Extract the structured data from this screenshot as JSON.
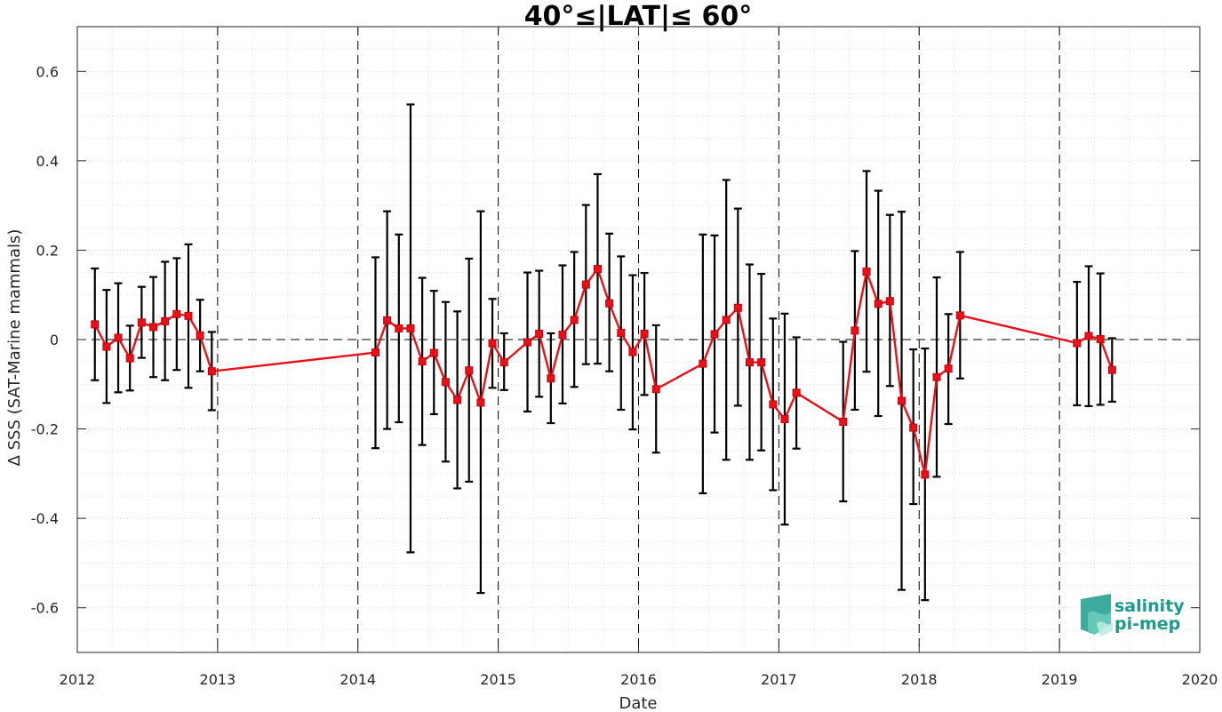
{
  "chart_data": {
    "type": "line",
    "title": "40°≤|LAT|≤ 60°",
    "xlabel": "Date",
    "ylabel": "Δ SSS (SAT-Marine mammals)",
    "xlim": [
      2012,
      2020
    ],
    "ylim": [
      -0.7,
      0.7
    ],
    "x_ticks": [
      "2012",
      "2013",
      "2014",
      "2015",
      "2016",
      "2017",
      "2018",
      "2019",
      "2020"
    ],
    "y_ticks": [
      "-0.6",
      "-0.4",
      "-0.2",
      "0",
      "0.2",
      "0.4",
      "0.6"
    ],
    "grid": true,
    "reference_line_y": 0,
    "year_separators": true,
    "colors": {
      "series": "#e8111a",
      "errorbars": "#000000",
      "grid": "#c8c8c8"
    },
    "series": [
      {
        "x": [
          "2012-02",
          "2012-03",
          "2012-04",
          "2012-05",
          "2012-06",
          "2012-07",
          "2012-08",
          "2012-09",
          "2012-10",
          "2012-11",
          "2012-12",
          "2014-02",
          "2014-03",
          "2014-04",
          "2014-05",
          "2014-06",
          "2014-07",
          "2014-08",
          "2014-09",
          "2014-10",
          "2014-11",
          "2014-12",
          "2015-01",
          "2015-03",
          "2015-04",
          "2015-05",
          "2015-06",
          "2015-07",
          "2015-08",
          "2015-09",
          "2015-10",
          "2015-11",
          "2015-12",
          "2016-01",
          "2016-02",
          "2016-06",
          "2016-07",
          "2016-08",
          "2016-09",
          "2016-10",
          "2016-11",
          "2016-12",
          "2017-01",
          "2017-02",
          "2017-06",
          "2017-07",
          "2017-08",
          "2017-09",
          "2017-10",
          "2017-11",
          "2017-12",
          "2018-01",
          "2018-02",
          "2018-03",
          "2018-04",
          "2019-02",
          "2019-03",
          "2019-04",
          "2019-05"
        ],
        "values": [
          0.034,
          -0.016,
          0.004,
          -0.042,
          0.038,
          0.028,
          0.041,
          0.057,
          0.053,
          0.009,
          -0.071,
          -0.029,
          0.043,
          0.025,
          0.025,
          -0.049,
          -0.03,
          -0.095,
          -0.135,
          -0.069,
          -0.141,
          -0.008,
          -0.051,
          -0.006,
          0.013,
          -0.087,
          0.011,
          0.044,
          0.123,
          0.158,
          0.081,
          0.015,
          -0.028,
          0.013,
          -0.111,
          -0.054,
          0.012,
          0.044,
          0.071,
          -0.051,
          -0.051,
          -0.145,
          -0.178,
          -0.119,
          -0.184,
          0.02,
          0.152,
          0.08,
          0.086,
          -0.137,
          -0.197,
          -0.302,
          -0.084,
          -0.065,
          0.054,
          -0.008,
          0.008,
          0.001,
          -0.068
        ],
        "error_low": [
          -0.091,
          -0.142,
          -0.118,
          -0.114,
          -0.041,
          -0.084,
          -0.091,
          -0.068,
          -0.108,
          -0.071,
          -0.158,
          -0.243,
          -0.2,
          -0.185,
          -0.476,
          -0.236,
          -0.167,
          -0.273,
          -0.333,
          -0.318,
          -0.567,
          -0.108,
          -0.113,
          -0.161,
          -0.128,
          -0.187,
          -0.143,
          -0.106,
          -0.055,
          -0.054,
          -0.071,
          -0.157,
          -0.201,
          -0.124,
          -0.253,
          -0.344,
          -0.208,
          -0.269,
          -0.148,
          -0.269,
          -0.248,
          -0.337,
          -0.414,
          -0.244,
          -0.362,
          -0.157,
          -0.072,
          -0.171,
          -0.104,
          -0.56,
          -0.368,
          -0.583,
          -0.307,
          -0.189,
          -0.087,
          -0.147,
          -0.149,
          -0.146,
          -0.139
        ],
        "error_high": [
          0.159,
          0.111,
          0.126,
          0.031,
          0.118,
          0.14,
          0.174,
          0.182,
          0.213,
          0.089,
          0.017,
          0.184,
          0.287,
          0.235,
          0.526,
          0.138,
          0.109,
          0.084,
          0.063,
          0.181,
          0.287,
          0.091,
          0.014,
          0.15,
          0.154,
          0.014,
          0.166,
          0.196,
          0.301,
          0.37,
          0.237,
          0.186,
          0.144,
          0.149,
          0.032,
          0.235,
          0.233,
          0.357,
          0.293,
          0.168,
          0.147,
          0.047,
          0.058,
          0.005,
          -0.005,
          0.198,
          0.377,
          0.333,
          0.279,
          0.286,
          -0.022,
          -0.02,
          0.139,
          0.057,
          0.196,
          0.129,
          0.164,
          0.148,
          0.003
        ]
      }
    ]
  },
  "logo": {
    "line1": "salinity",
    "line2": "pi-mep",
    "color": "#1a9b8c"
  }
}
